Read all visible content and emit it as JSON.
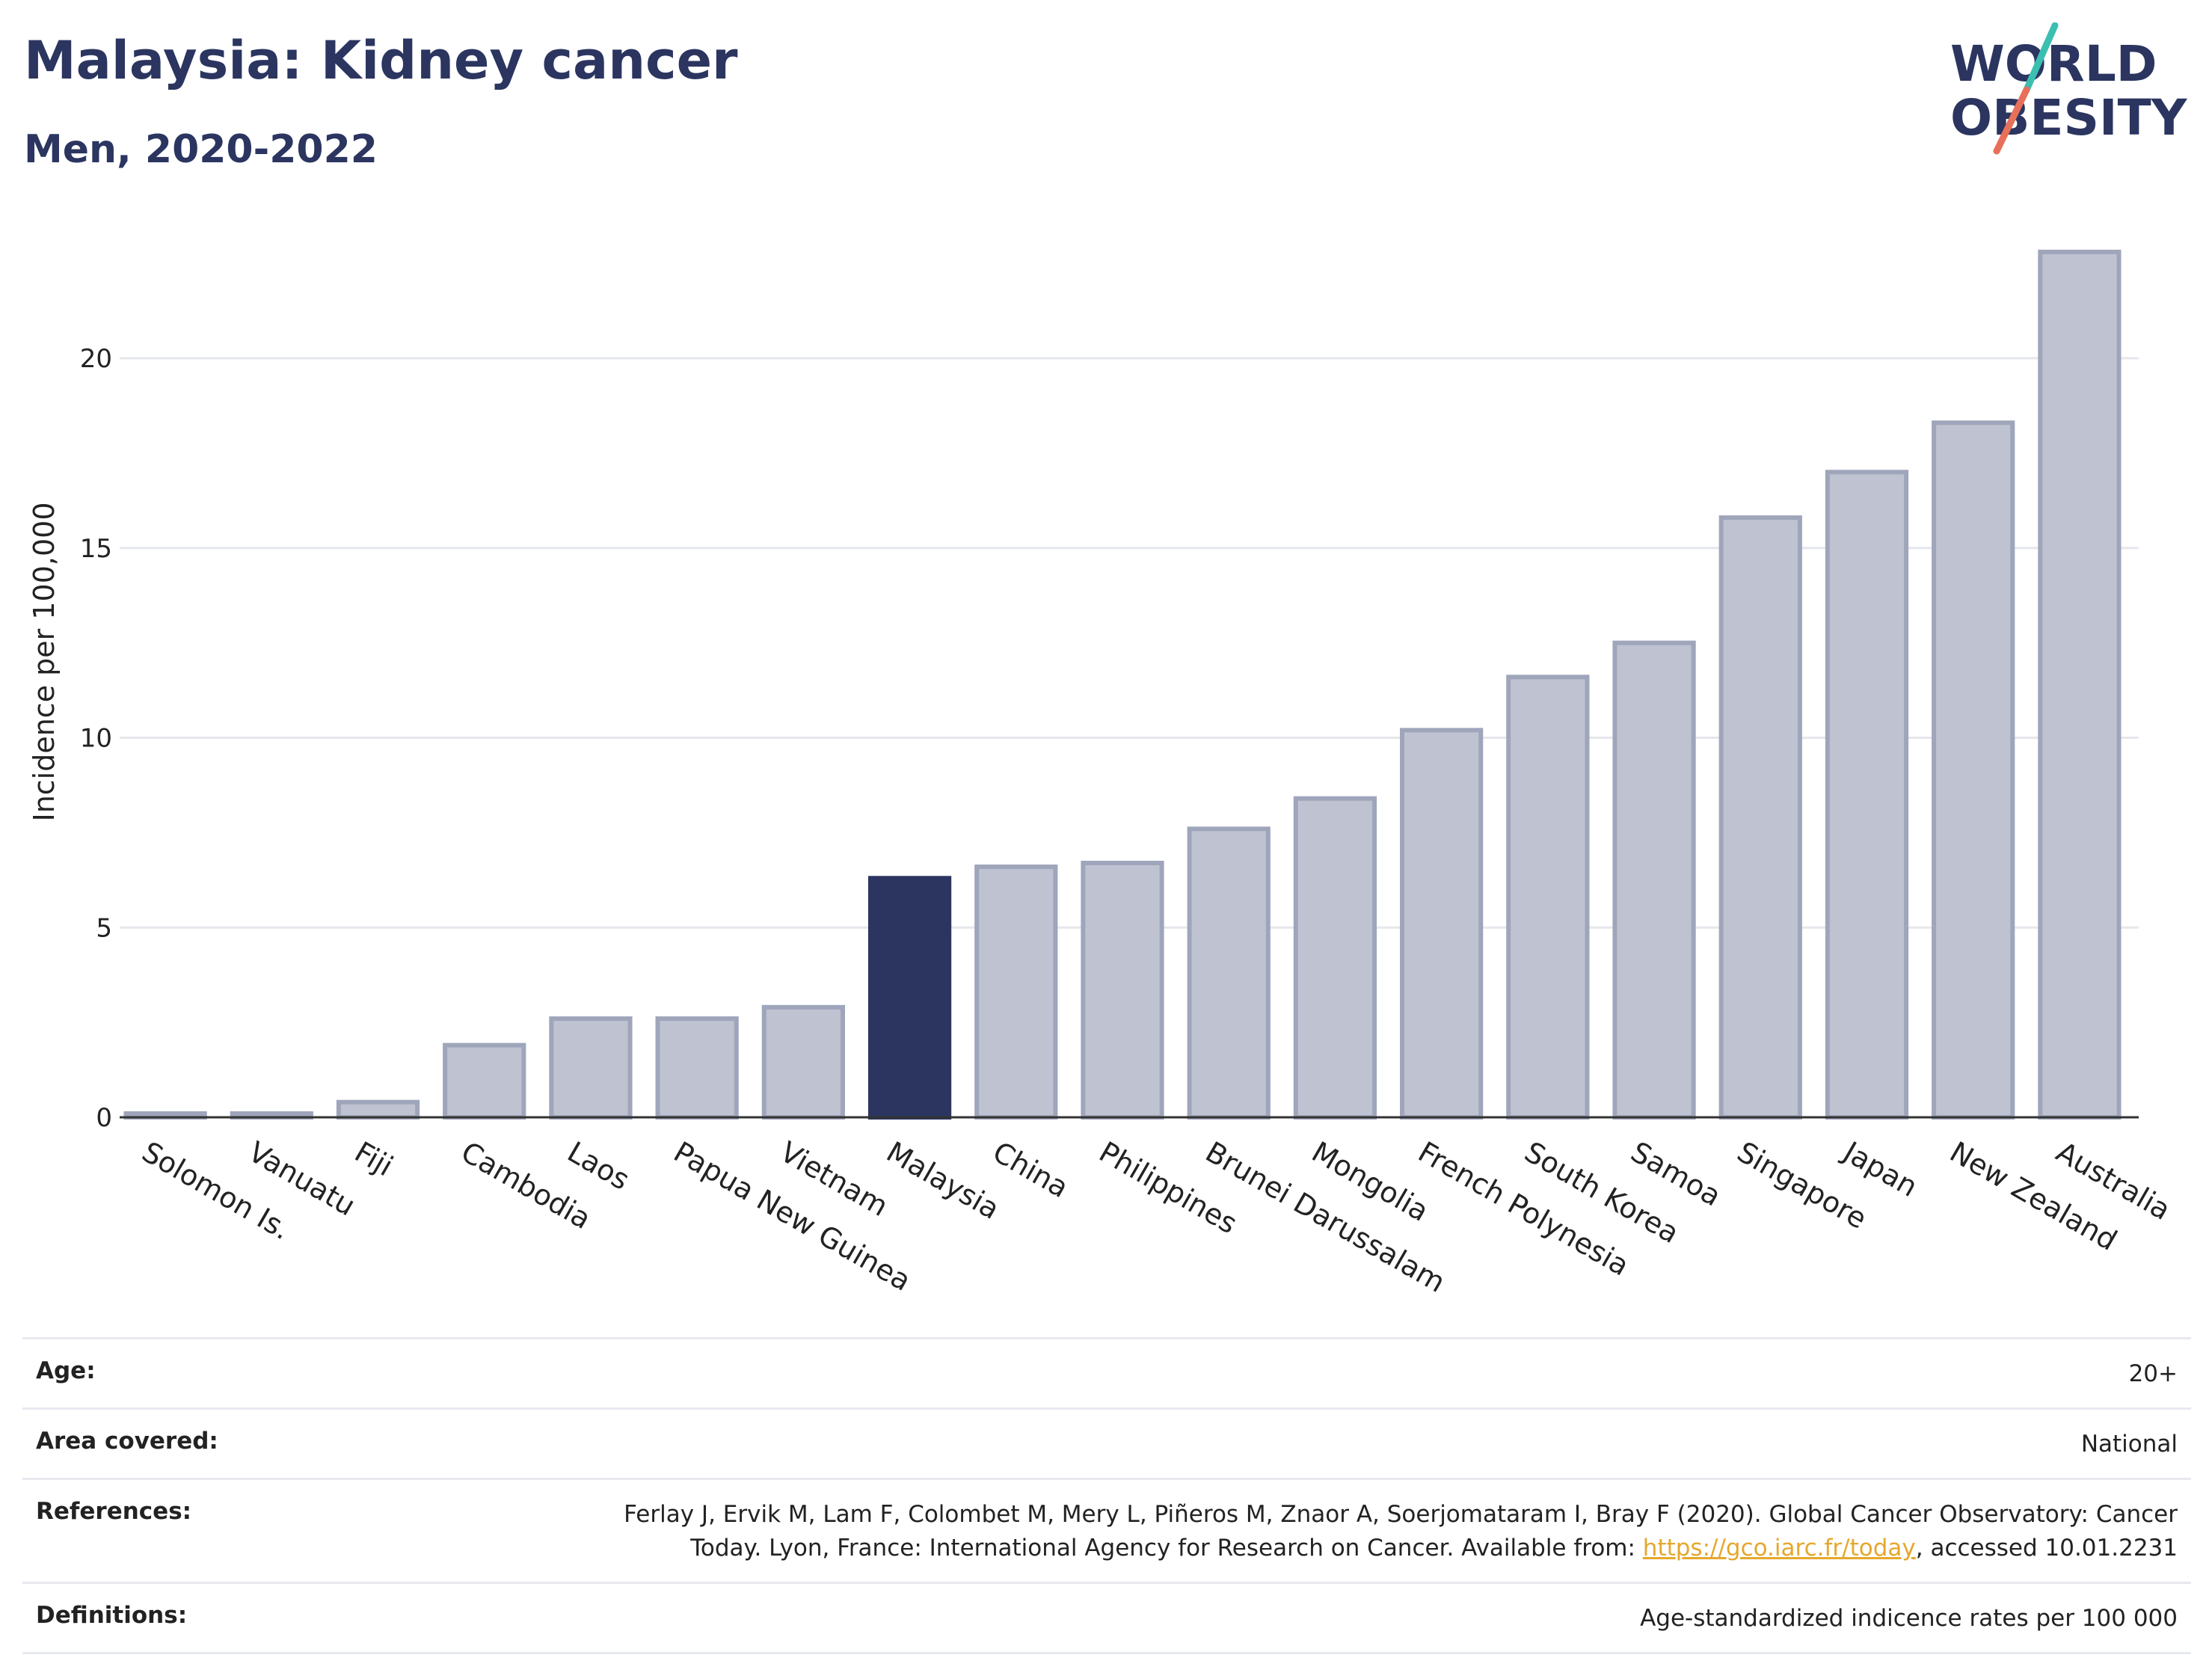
{
  "header": {
    "title": "Malaysia: Kidney cancer",
    "subtitle": "Men, 2020-2022"
  },
  "logo": {
    "line1": "WORLD",
    "line2": "OBESITY"
  },
  "chart_data": {
    "type": "bar",
    "ylabel": "Incidence per 100,000",
    "ylim": [
      0,
      24
    ],
    "yticks": [
      0,
      5,
      10,
      15,
      20
    ],
    "grid": true,
    "categories": [
      "Solomon Is.",
      "Vanuatu",
      "Fiji",
      "Cambodia",
      "Laos",
      "Papua New Guinea",
      "Vietnam",
      "Malaysia",
      "China",
      "Philippines",
      "Brunei Darussalam",
      "Mongolia",
      "French Polynesia",
      "South Korea",
      "Samoa",
      "Singapore",
      "Japan",
      "New Zealand",
      "Australia"
    ],
    "values": [
      0.1,
      0.1,
      0.4,
      1.9,
      2.6,
      2.6,
      2.9,
      6.3,
      6.6,
      6.7,
      7.6,
      8.4,
      10.2,
      11.6,
      12.5,
      15.8,
      17.0,
      18.3,
      22.8
    ],
    "highlight": "Malaysia",
    "colors": {
      "highlight": "#2b3560",
      "default_fill": "#bfc3d1",
      "default_stroke": "#9fa5ba"
    }
  },
  "meta": {
    "age_label": "Age:",
    "age_value": "20+",
    "area_label": "Area covered:",
    "area_value": "National",
    "references_label": "References:",
    "references_text_1": "Ferlay J, Ervik M, Lam F, Colombet M, Mery L, Piñeros M, Znaor A, Soerjomataram I, Bray F (2020). Global Cancer Observatory: Cancer Today. Lyon, France: International Agency for Research on Cancer. Available from: ",
    "references_link": "https://gco.iarc.fr/today",
    "references_text_2": ", accessed 10.01.2231",
    "definitions_label": "Definitions:",
    "definitions_value": "Age-standardized indicence rates per 100 000"
  }
}
